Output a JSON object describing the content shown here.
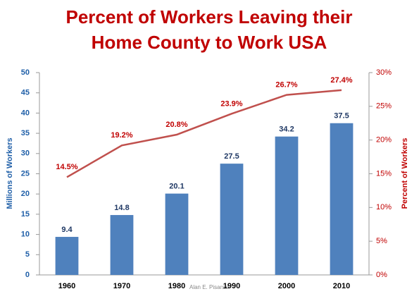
{
  "chart_data": {
    "type": "bar",
    "title": [
      "Percent of Workers Leaving their",
      "Home County to Work  USA"
    ],
    "categories": [
      "1960",
      "1970",
      "1980",
      "1990",
      "2000",
      "2010"
    ],
    "series": [
      {
        "type": "bar",
        "color": "#4f81bd",
        "values": [
          9.4,
          14.8,
          20.1,
          27.5,
          34.2,
          37.5
        ]
      },
      {
        "type": "line",
        "axis": "y2",
        "color": "#c0504d",
        "values": [
          14.5,
          19.2,
          20.8,
          23.9,
          26.7,
          27.4
        ],
        "value_labels": [
          "14.5%",
          "19.2%",
          "20.8%",
          "23.9%",
          "26.7%",
          "27.4%"
        ]
      }
    ],
    "ylabel": "Millions of Workers",
    "y2label": "Percent of Workers",
    "ylim": [
      0,
      50
    ],
    "yticks": [
      0,
      5,
      10,
      15,
      20,
      25,
      30,
      35,
      40,
      45,
      50
    ],
    "y2lim": [
      0,
      30
    ],
    "y2ticks": [
      {
        "value": 0,
        "label": "0%"
      },
      {
        "value": 5,
        "label": "5%"
      },
      {
        "value": 10,
        "label": "10%"
      },
      {
        "value": 15,
        "label": "15%"
      },
      {
        "value": 20,
        "label": "20%"
      },
      {
        "value": 25,
        "label": "25%"
      },
      {
        "value": 30,
        "label": "30%"
      }
    ],
    "annotation": "Alan E. Pisarski",
    "grid": false
  }
}
